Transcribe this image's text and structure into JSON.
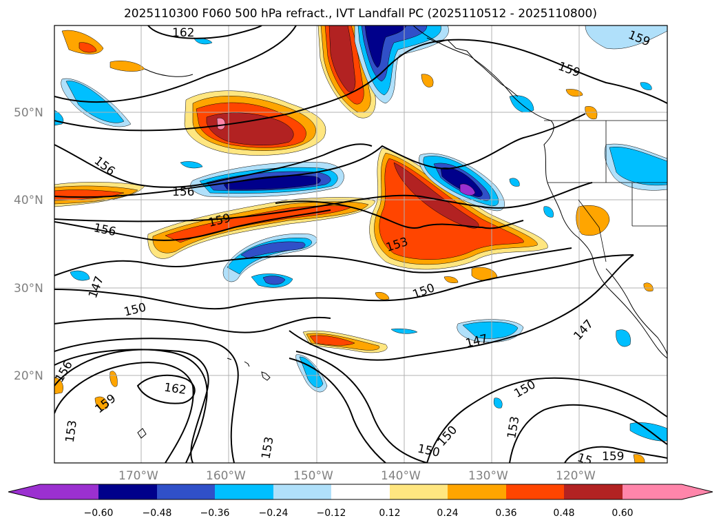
{
  "title": "2025110300 F060 500 hPa refract., IVT Landfall PC (2025110512 - 2025110800)",
  "map": {
    "lat_labels": [
      "50°N",
      "40°N",
      "30°N",
      "20°N"
    ],
    "lon_labels": [
      "170°W",
      "160°W",
      "150°W",
      "140°W",
      "130°W",
      "120°W"
    ],
    "contour_labels": [
      "162",
      "159",
      "159",
      "156",
      "156",
      "156",
      "159",
      "153",
      "150",
      "147",
      "150",
      "147",
      "147",
      "162",
      "159",
      "156",
      "153",
      "153",
      "150",
      "150",
      "153",
      "150",
      "159",
      "15"
    ]
  },
  "colorbar": {
    "ticks": [
      "−0.60",
      "−0.48",
      "−0.36",
      "−0.24",
      "−0.12",
      "0.12",
      "0.24",
      "0.36",
      "0.48",
      "0.60"
    ],
    "colors": [
      "#9b30d0",
      "#00008b",
      "#3050c8",
      "#00bfff",
      "#b0e0fa",
      "#ffffff",
      "#ffe680",
      "#ffa500",
      "#ff4500",
      "#b22222",
      "#ff85aa"
    ]
  }
}
